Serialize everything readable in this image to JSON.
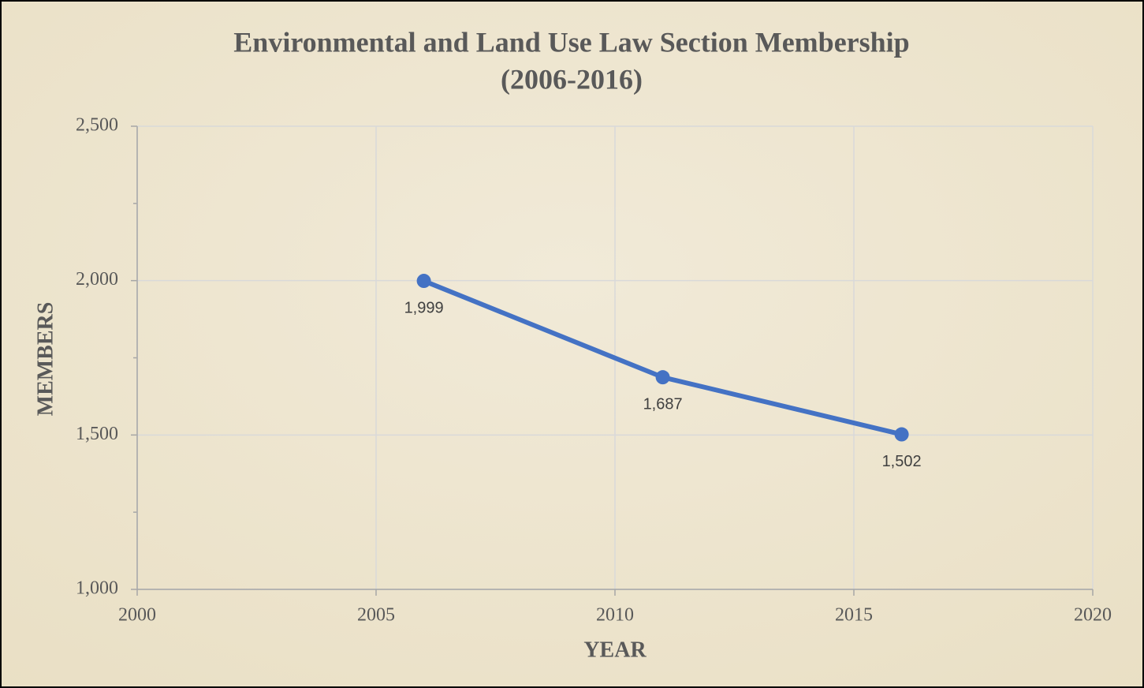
{
  "chart_data": {
    "type": "line",
    "title": [
      "Environmental  and Land Use Law Section Membership",
      "(2006-2016)"
    ],
    "x_label": "YEAR",
    "y_label": "MEMBERS",
    "x": [
      2006,
      2011,
      2016
    ],
    "series": [
      {
        "color": "#4472c4",
        "values": [
          1999,
          1687,
          1502
        ],
        "value_labels": [
          "1,999",
          "1,687",
          "1,502"
        ]
      }
    ],
    "xlim": [
      2000,
      2020
    ],
    "xticks": [
      2000,
      2005,
      2010,
      2015,
      2020
    ],
    "ylim": [
      1000,
      2500
    ],
    "yticks": [
      {
        "value": 1000,
        "label": "1,000"
      },
      {
        "value": 1500,
        "label": "1,500"
      },
      {
        "value": 2000,
        "label": "2,000"
      },
      {
        "value": 2500,
        "label": "2,500"
      }
    ],
    "y_minor_ticks": [
      1250,
      1750,
      2250
    ],
    "grid": true
  }
}
